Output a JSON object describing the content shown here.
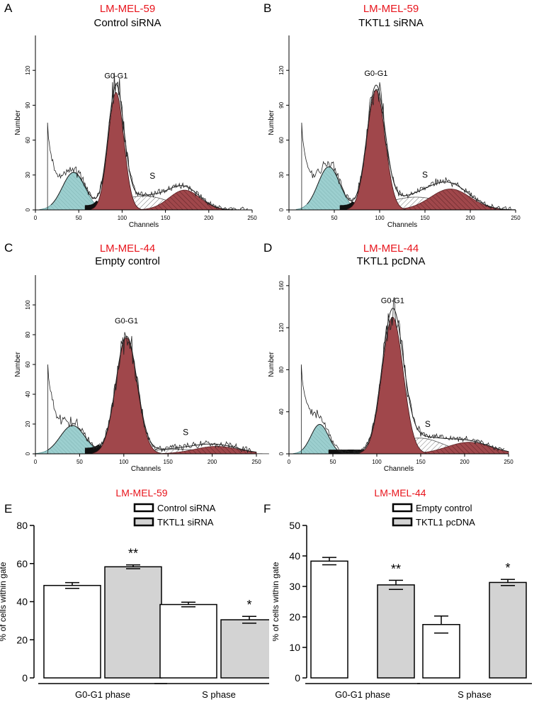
{
  "colors": {
    "accent_red": "#e8141c",
    "g1_fill": "#a0474b",
    "subg1_fill": "#9ccfcf",
    "s_outline": "#555555",
    "bar_gray": "#d3d3d3"
  },
  "panels": {
    "A": {
      "letter": "A",
      "cell_line": "LM-MEL-59",
      "condition": "Control siRNA",
      "peak_label": "G0-G1",
      "s_label": "S"
    },
    "B": {
      "letter": "B",
      "cell_line": "LM-MEL-59",
      "condition": "TKTL1 siRNA",
      "peak_label": "G0-G1",
      "s_label": "S"
    },
    "C": {
      "letter": "C",
      "cell_line": "LM-MEL-44",
      "condition": "Empty control",
      "peak_label": "G0-G1",
      "s_label": "S"
    },
    "D": {
      "letter": "D",
      "cell_line": "LM-MEL-44",
      "condition": "TKTL1 pcDNA",
      "peak_label": "G0-G1",
      "s_label": "S"
    },
    "E": {
      "letter": "E"
    },
    "F": {
      "letter": "F"
    }
  },
  "chart_data": [
    {
      "id": "A",
      "type": "area",
      "title": "Control siRNA",
      "xlabel": "Channels",
      "ylabel": "Number",
      "xlim": [
        0,
        250
      ],
      "ylim": [
        0,
        150
      ],
      "xticks": [
        "0",
        "50",
        "100",
        "150",
        "200",
        "250"
      ],
      "yticks": [
        "0",
        "30",
        "60",
        "90",
        "120"
      ],
      "components": [
        {
          "name": "sub-G1",
          "mu": 44,
          "sigma": 13,
          "amp": 32
        },
        {
          "name": "G0-G1",
          "mu": 93,
          "sigma": 9,
          "amp": 101
        },
        {
          "name": "S",
          "mu": 125,
          "sigma": 30,
          "amp": 12
        },
        {
          "name": "G2-M",
          "mu": 172,
          "sigma": 18,
          "amp": 17
        }
      ]
    },
    {
      "id": "B",
      "type": "area",
      "title": "TKTL1 siRNA",
      "xlabel": "Channels",
      "ylabel": "Number",
      "xlim": [
        0,
        250
      ],
      "ylim": [
        0,
        150
      ],
      "xticks": [
        "0",
        "50",
        "100",
        "150",
        "200",
        "250"
      ],
      "yticks": [
        "0",
        "30",
        "60",
        "90",
        "120"
      ],
      "components": [
        {
          "name": "sub-G1",
          "mu": 44,
          "sigma": 12,
          "amp": 37
        },
        {
          "name": "G0-G1",
          "mu": 96,
          "sigma": 10,
          "amp": 103
        },
        {
          "name": "S",
          "mu": 140,
          "sigma": 32,
          "amp": 11
        },
        {
          "name": "G2-M",
          "mu": 178,
          "sigma": 22,
          "amp": 18
        }
      ]
    },
    {
      "id": "C",
      "type": "area",
      "title": "Empty control",
      "xlabel": "Channels",
      "ylabel": "Number",
      "xlim": [
        0,
        250
      ],
      "ylim": [
        0,
        120
      ],
      "xticks": [
        "0",
        "50",
        "100",
        "150",
        "200",
        "250"
      ],
      "yticks": [
        "0",
        "20",
        "40",
        "60",
        "80",
        "100"
      ],
      "components": [
        {
          "name": "sub-G1",
          "mu": 42,
          "sigma": 14,
          "amp": 19
        },
        {
          "name": "G0-G1",
          "mu": 103,
          "sigma": 12,
          "amp": 78
        },
        {
          "name": "S",
          "mu": 160,
          "sigma": 38,
          "amp": 3
        },
        {
          "name": "G2-M",
          "mu": 205,
          "sigma": 25,
          "amp": 5
        }
      ]
    },
    {
      "id": "D",
      "type": "area",
      "title": "TKTL1 pcDNA",
      "xlabel": "Channels",
      "ylabel": "Number",
      "xlim": [
        0,
        250
      ],
      "ylim": [
        0,
        170
      ],
      "xticks": [
        "0",
        "50",
        "100",
        "150",
        "200",
        "250"
      ],
      "yticks": [
        "0",
        "40",
        "80",
        "120",
        "160"
      ],
      "components": [
        {
          "name": "sub-G1",
          "mu": 35,
          "sigma": 10,
          "amp": 28
        },
        {
          "name": "G0-G1",
          "mu": 118,
          "sigma": 12,
          "amp": 130
        },
        {
          "name": "S",
          "mu": 148,
          "sigma": 28,
          "amp": 15
        },
        {
          "name": "G2-M",
          "mu": 205,
          "sigma": 25,
          "amp": 11
        }
      ]
    },
    {
      "id": "E",
      "type": "bar",
      "title": "LM-MEL-59",
      "ylabel": "% of cells within gate",
      "ylim": [
        0,
        80
      ],
      "yticks": [
        "0",
        "20",
        "40",
        "60",
        "80"
      ],
      "categories": [
        "G0-G1 phase",
        "S phase"
      ],
      "series": [
        {
          "name": "Control siRNA",
          "values": [
            48.5,
            38.5
          ],
          "errors": [
            1.5,
            1.2
          ]
        },
        {
          "name": "TKTL1 siRNA",
          "values": [
            58.3,
            30.5
          ],
          "errors": [
            1.0,
            1.8
          ]
        }
      ],
      "annotations": [
        "**",
        "*"
      ]
    },
    {
      "id": "F",
      "type": "bar",
      "title": "LM-MEL-44",
      "ylabel": "% of cells within gate",
      "ylim": [
        0,
        50
      ],
      "yticks": [
        "0",
        "10",
        "20",
        "30",
        "40",
        "50"
      ],
      "categories": [
        "G0-G1 phase",
        "S phase"
      ],
      "series": [
        {
          "name": "Empty control",
          "values": [
            38.3,
            17.5
          ],
          "errors": [
            1.2,
            2.8
          ]
        },
        {
          "name": "TKTL1 pcDNA",
          "values": [
            30.5,
            31.3
          ],
          "errors": [
            1.5,
            1.0
          ]
        }
      ],
      "annotations": [
        "**",
        "*"
      ]
    }
  ]
}
